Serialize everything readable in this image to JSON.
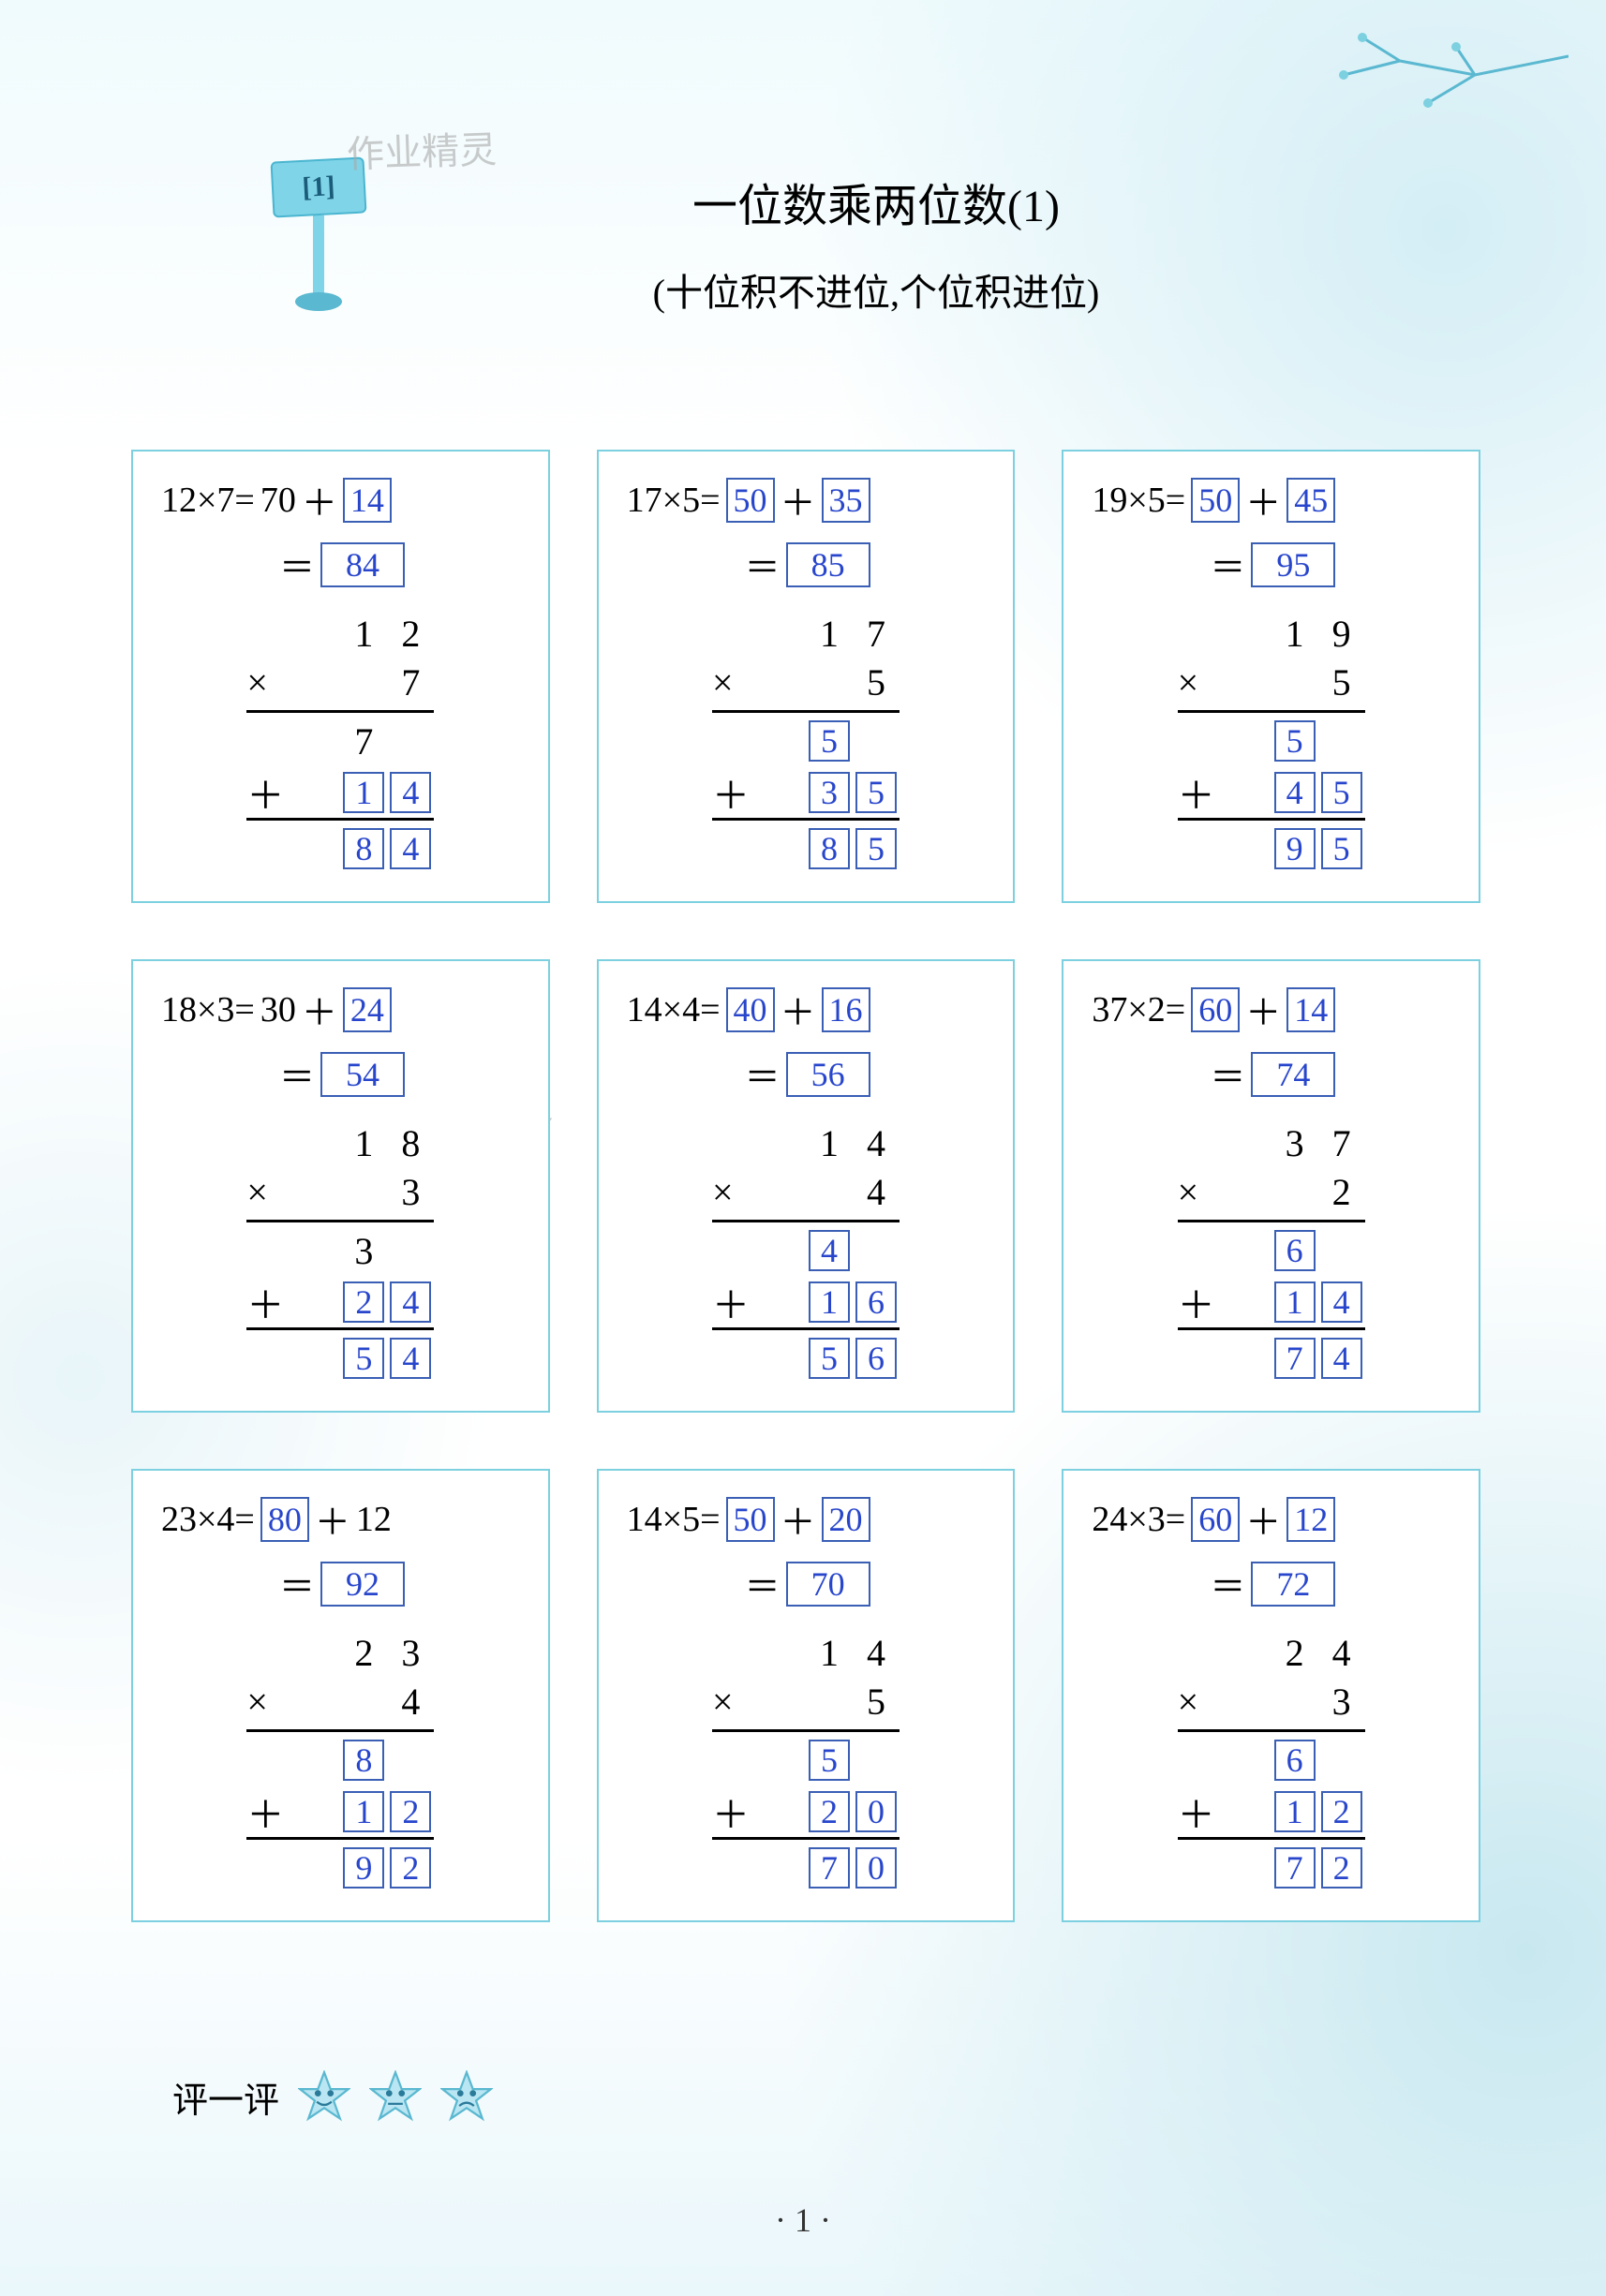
{
  "colors": {
    "card_border": "#7cd0e0",
    "answer_box_border": "#3a5fb5",
    "answer_text": "#2846cc",
    "text": "#000000",
    "bg": "#ffffff",
    "accent": "#c8e8f0"
  },
  "fonts": {
    "title_size": 48,
    "subtitle_size": 40,
    "body_size": 38
  },
  "header": {
    "badge": "[1]",
    "watermark1": "作业精灵",
    "watermark2": "作业精灵",
    "title": "一位数乘两位数(1)",
    "subtitle": "(十位积不进位,个位积进位)"
  },
  "rating_label": "评一评",
  "page_number": "· 1 ·",
  "problems": [
    {
      "expr": "12×7=",
      "a": "70",
      "a_boxed": false,
      "plus": "＋",
      "b": "14",
      "b_boxed": true,
      "result": "84",
      "col_top": [
        "",
        "1",
        "2"
      ],
      "col_mul": [
        "",
        "",
        "7"
      ],
      "pp1": {
        "d": [
          "",
          "7",
          ""
        ],
        "boxed": [
          false,
          false,
          false
        ]
      },
      "pp2": {
        "d": [
          "",
          "1",
          "4"
        ],
        "boxed": [
          false,
          true,
          true
        ]
      },
      "sum": {
        "d": [
          "",
          "8",
          "4"
        ],
        "boxed": [
          false,
          true,
          true
        ]
      }
    },
    {
      "expr": "17×5=",
      "a": "50",
      "a_boxed": true,
      "plus": "＋",
      "b": "35",
      "b_boxed": true,
      "result": "85",
      "col_top": [
        "",
        "1",
        "7"
      ],
      "col_mul": [
        "",
        "",
        "5"
      ],
      "pp1": {
        "d": [
          "",
          "5",
          ""
        ],
        "boxed": [
          false,
          true,
          false
        ]
      },
      "pp2": {
        "d": [
          "",
          "3",
          "5"
        ],
        "boxed": [
          false,
          true,
          true
        ]
      },
      "sum": {
        "d": [
          "",
          "8",
          "5"
        ],
        "boxed": [
          false,
          true,
          true
        ]
      }
    },
    {
      "expr": "19×5=",
      "a": "50",
      "a_boxed": true,
      "plus": "＋",
      "b": "45",
      "b_boxed": true,
      "result": "95",
      "col_top": [
        "",
        "1",
        "9"
      ],
      "col_mul": [
        "",
        "",
        "5"
      ],
      "pp1": {
        "d": [
          "",
          "5",
          ""
        ],
        "boxed": [
          false,
          true,
          false
        ]
      },
      "pp2": {
        "d": [
          "",
          "4",
          "5"
        ],
        "boxed": [
          false,
          true,
          true
        ]
      },
      "sum": {
        "d": [
          "",
          "9",
          "5"
        ],
        "boxed": [
          false,
          true,
          true
        ]
      }
    },
    {
      "expr": "18×3=",
      "a": "30",
      "a_boxed": false,
      "plus": "＋",
      "b": "24",
      "b_boxed": true,
      "result": "54",
      "col_top": [
        "",
        "1",
        "8"
      ],
      "col_mul": [
        "",
        "",
        "3"
      ],
      "pp1": {
        "d": [
          "",
          "3",
          ""
        ],
        "boxed": [
          false,
          false,
          false
        ]
      },
      "pp2": {
        "d": [
          "",
          "2",
          "4"
        ],
        "boxed": [
          false,
          true,
          true
        ]
      },
      "sum": {
        "d": [
          "",
          "5",
          "4"
        ],
        "boxed": [
          false,
          true,
          true
        ]
      }
    },
    {
      "expr": "14×4=",
      "a": "40",
      "a_boxed": true,
      "plus": "＋",
      "b": "16",
      "b_boxed": true,
      "result": "56",
      "col_top": [
        "",
        "1",
        "4"
      ],
      "col_mul": [
        "",
        "",
        "4"
      ],
      "pp1": {
        "d": [
          "",
          "4",
          ""
        ],
        "boxed": [
          false,
          true,
          false
        ]
      },
      "pp2": {
        "d": [
          "",
          "1",
          "6"
        ],
        "boxed": [
          false,
          true,
          true
        ]
      },
      "sum": {
        "d": [
          "",
          "5",
          "6"
        ],
        "boxed": [
          false,
          true,
          true
        ]
      }
    },
    {
      "expr": "37×2=",
      "a": "60",
      "a_boxed": true,
      "plus": "＋",
      "b": "14",
      "b_boxed": true,
      "result": "74",
      "col_top": [
        "",
        "3",
        "7"
      ],
      "col_mul": [
        "",
        "",
        "2"
      ],
      "pp1": {
        "d": [
          "",
          "6",
          ""
        ],
        "boxed": [
          false,
          true,
          false
        ]
      },
      "pp2": {
        "d": [
          "",
          "1",
          "4"
        ],
        "boxed": [
          false,
          true,
          true
        ]
      },
      "sum": {
        "d": [
          "",
          "7",
          "4"
        ],
        "boxed": [
          false,
          true,
          true
        ]
      }
    },
    {
      "expr": "23×4=",
      "a": "80",
      "a_boxed": true,
      "plus": "＋",
      "b": "12",
      "b_boxed": false,
      "result": "92",
      "col_top": [
        "",
        "2",
        "3"
      ],
      "col_mul": [
        "",
        "",
        "4"
      ],
      "pp1": {
        "d": [
          "",
          "8",
          ""
        ],
        "boxed": [
          false,
          true,
          false
        ]
      },
      "pp2": {
        "d": [
          "",
          "1",
          "2"
        ],
        "boxed": [
          false,
          true,
          true
        ]
      },
      "sum": {
        "d": [
          "",
          "9",
          "2"
        ],
        "boxed": [
          false,
          true,
          true
        ]
      }
    },
    {
      "expr": "14×5=",
      "a": "50",
      "a_boxed": true,
      "plus": "＋",
      "b": "20",
      "b_boxed": true,
      "result": "70",
      "col_top": [
        "",
        "1",
        "4"
      ],
      "col_mul": [
        "",
        "",
        "5"
      ],
      "pp1": {
        "d": [
          "",
          "5",
          ""
        ],
        "boxed": [
          false,
          true,
          false
        ]
      },
      "pp2": {
        "d": [
          "",
          "2",
          "0"
        ],
        "boxed": [
          false,
          true,
          true
        ]
      },
      "sum": {
        "d": [
          "",
          "7",
          "0"
        ],
        "boxed": [
          false,
          true,
          true
        ]
      }
    },
    {
      "expr": "24×3=",
      "a": "60",
      "a_boxed": true,
      "plus": "＋",
      "b": "12",
      "b_boxed": true,
      "result": "72",
      "col_top": [
        "",
        "2",
        "4"
      ],
      "col_mul": [
        "",
        "",
        "3"
      ],
      "pp1": {
        "d": [
          "",
          "6",
          ""
        ],
        "boxed": [
          false,
          true,
          false
        ]
      },
      "pp2": {
        "d": [
          "",
          "1",
          "2"
        ],
        "boxed": [
          false,
          true,
          true
        ]
      },
      "sum": {
        "d": [
          "",
          "7",
          "2"
        ],
        "boxed": [
          false,
          true,
          true
        ]
      }
    }
  ]
}
